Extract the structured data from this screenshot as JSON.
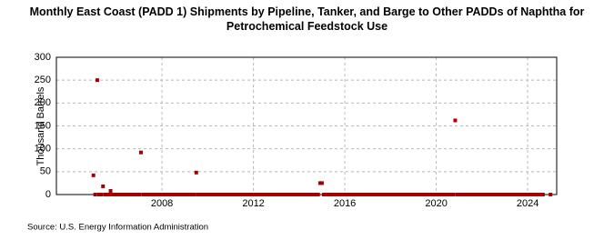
{
  "chart_data": {
    "type": "scatter",
    "title": "Monthly East Coast (PADD 1) Shipments by Pipeline, Tanker, and Barge to Other PADDs of Naphtha for Petrochemical Feedstock Use",
    "y_label": "Thousand Barrels",
    "source": "Source: U.S. Energy Information Administration",
    "xlim": [
      2003.38,
      2025.27
    ],
    "xticks": [
      2008,
      2012,
      2016,
      2020,
      2024
    ],
    "ylim": [
      0,
      300
    ],
    "yticks": [
      0,
      50,
      100,
      150,
      200,
      250,
      300
    ],
    "grid": true,
    "series": [
      {
        "color": "#a50000",
        "x": [
          2005,
          2005.08,
          2005.17,
          2005.25,
          2005.33,
          2005.42,
          2005.5,
          2005.58,
          2005.67,
          2005.75,
          2005.83,
          2005.92,
          2006,
          2006.08,
          2006.17,
          2006.25,
          2006.33,
          2006.42,
          2006.5,
          2006.58,
          2006.67,
          2006.75,
          2006.83,
          2006.92,
          2007,
          2007.08,
          2007.17,
          2007.25,
          2007.33,
          2007.42,
          2007.5,
          2007.58,
          2007.67,
          2007.75,
          2007.83,
          2007.92,
          2008,
          2008.08,
          2008.17,
          2008.25,
          2008.33,
          2008.42,
          2008.5,
          2008.58,
          2008.67,
          2008.75,
          2008.83,
          2008.92,
          2009,
          2009.08,
          2009.17,
          2009.25,
          2009.33,
          2009.42,
          2009.5,
          2009.58,
          2009.67,
          2009.75,
          2009.83,
          2009.92,
          2010,
          2010.08,
          2010.17,
          2010.25,
          2010.33,
          2010.42,
          2010.5,
          2010.58,
          2010.67,
          2010.75,
          2010.83,
          2010.92,
          2011,
          2011.08,
          2011.17,
          2011.25,
          2011.33,
          2011.42,
          2011.5,
          2011.58,
          2011.67,
          2011.75,
          2011.83,
          2011.92,
          2012,
          2012.08,
          2012.17,
          2012.25,
          2012.33,
          2012.42,
          2012.5,
          2012.58,
          2012.67,
          2012.75,
          2012.83,
          2012.92,
          2013,
          2013.08,
          2013.17,
          2013.25,
          2013.33,
          2013.42,
          2013.5,
          2013.58,
          2013.67,
          2013.75,
          2013.83,
          2013.92,
          2014,
          2014.08,
          2014.17,
          2014.25,
          2014.33,
          2014.42,
          2014.5,
          2014.58,
          2014.67,
          2014.75,
          2014.83,
          2014.92,
          2015,
          2015.08,
          2015.17,
          2015.25,
          2015.33,
          2015.42,
          2015.5,
          2015.58,
          2015.67,
          2015.75,
          2015.83,
          2015.92,
          2016,
          2016.08,
          2016.17,
          2016.25,
          2016.33,
          2016.42,
          2016.5,
          2016.58,
          2016.67,
          2016.75,
          2016.83,
          2016.92,
          2017,
          2017.08,
          2017.17,
          2017.25,
          2017.33,
          2017.42,
          2017.5,
          2017.58,
          2017.67,
          2017.75,
          2017.83,
          2017.92,
          2018,
          2018.08,
          2018.17,
          2018.25,
          2018.33,
          2018.42,
          2018.5,
          2018.58,
          2018.67,
          2018.75,
          2018.83,
          2018.92,
          2019,
          2019.08,
          2019.17,
          2019.25,
          2019.33,
          2019.42,
          2019.5,
          2019.58,
          2019.67,
          2019.75,
          2019.83,
          2019.92,
          2020,
          2020.08,
          2020.17,
          2020.25,
          2020.33,
          2020.42,
          2020.5,
          2020.58,
          2020.67,
          2020.75,
          2020.83,
          2020.92,
          2021,
          2021.08,
          2021.17,
          2021.25,
          2021.33,
          2021.42,
          2021.5,
          2021.58,
          2021.67,
          2021.75,
          2021.83,
          2021.92,
          2022,
          2022.08,
          2022.17,
          2022.25,
          2022.33,
          2022.42,
          2022.5,
          2022.58,
          2022.67,
          2022.75,
          2022.83,
          2022.92,
          2023,
          2023.08,
          2023.17,
          2023.25,
          2023.33,
          2023.42,
          2023.5,
          2023.58,
          2023.67,
          2023.75,
          2023.83,
          2023.92,
          2024,
          2024.08,
          2024.17,
          2024.25,
          2024.33,
          2024.42,
          2024.5,
          2024.58,
          2024.67,
          2025
        ],
        "values": [
          42,
          0,
          250,
          0,
          0,
          18,
          0,
          0,
          0,
          8,
          0,
          0,
          0,
          0,
          0,
          0,
          0,
          0,
          0,
          0,
          0,
          0,
          0,
          0,
          0,
          92,
          0,
          0,
          0,
          0,
          0,
          0,
          0,
          0,
          0,
          0,
          0,
          0,
          0,
          0,
          0,
          0,
          0,
          0,
          0,
          0,
          0,
          0,
          0,
          0,
          0,
          0,
          0,
          0,
          48,
          0,
          0,
          0,
          0,
          0,
          0,
          0,
          0,
          0,
          0,
          0,
          0,
          0,
          0,
          0,
          0,
          0,
          0,
          0,
          0,
          0,
          0,
          0,
          0,
          0,
          0,
          0,
          0,
          0,
          0,
          0,
          0,
          0,
          0,
          0,
          0,
          0,
          0,
          0,
          0,
          0,
          0,
          0,
          0,
          0,
          0,
          0,
          0,
          0,
          0,
          0,
          0,
          0,
          0,
          0,
          0,
          0,
          0,
          0,
          0,
          0,
          0,
          0,
          0,
          25,
          25,
          0,
          0,
          0,
          0,
          0,
          0,
          0,
          0,
          0,
          0,
          0,
          0,
          0,
          0,
          0,
          0,
          0,
          0,
          0,
          0,
          0,
          0,
          0,
          0,
          0,
          0,
          0,
          0,
          0,
          0,
          0,
          0,
          0,
          0,
          0,
          0,
          0,
          0,
          0,
          0,
          0,
          0,
          0,
          0,
          0,
          0,
          0,
          0,
          0,
          0,
          0,
          0,
          0,
          0,
          0,
          0,
          0,
          0,
          0,
          0,
          0,
          0,
          0,
          0,
          0,
          0,
          0,
          0,
          0,
          162,
          0,
          0,
          0,
          0,
          0,
          0,
          0,
          0,
          0,
          0,
          0,
          0,
          0,
          0,
          0,
          0,
          0,
          0,
          0,
          0,
          0,
          0,
          0,
          0,
          0,
          0,
          0,
          0,
          0,
          0,
          0,
          0,
          0,
          0,
          0,
          0,
          0,
          0,
          0,
          0,
          0,
          0,
          0,
          0,
          0,
          0,
          0
        ]
      }
    ]
  }
}
